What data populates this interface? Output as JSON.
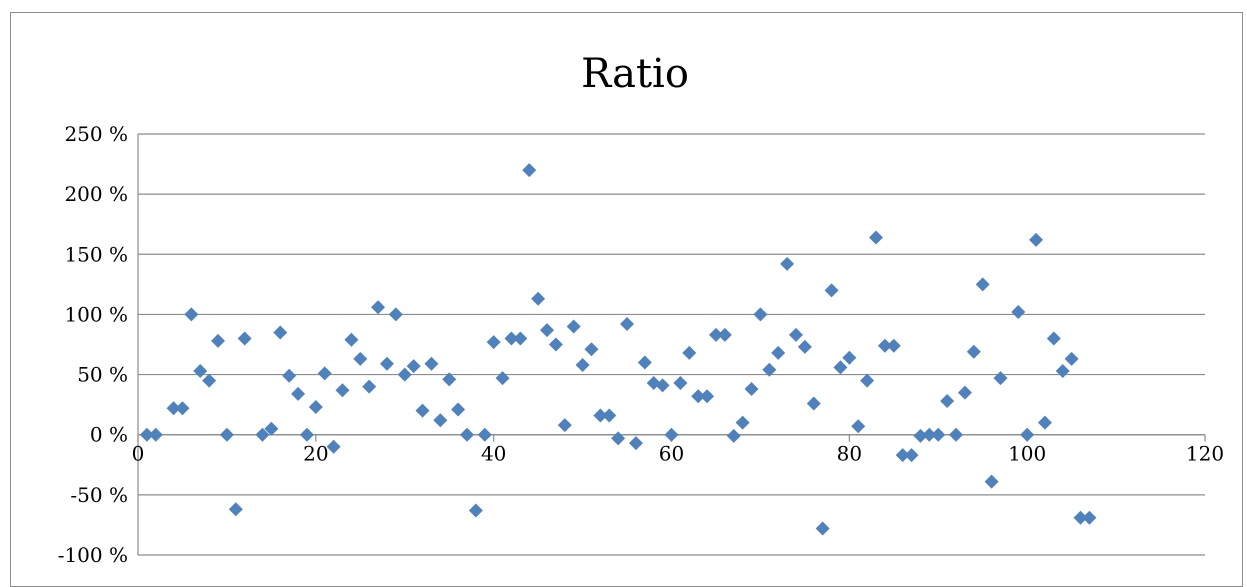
{
  "chart_data": {
    "type": "scatter",
    "title": "Ratio",
    "xlabel": "",
    "ylabel": "",
    "xlim": [
      0,
      120
    ],
    "ylim": [
      -100,
      250
    ],
    "x_ticks": [
      0,
      20,
      40,
      60,
      80,
      100,
      120
    ],
    "y_ticks": [
      -100,
      -50,
      0,
      50,
      100,
      150,
      200,
      250
    ],
    "x_tick_labels": [
      "0",
      "20",
      "40",
      "60",
      "80",
      "100",
      "120"
    ],
    "y_tick_labels": [
      "-100 %",
      "-50 %",
      "0 %",
      "50 %",
      "100 %",
      "150 %",
      "200 %",
      "250 %"
    ],
    "grid": "horizontal",
    "legend": "none",
    "marker": "diamond",
    "colors": {
      "marker": "#4f81bd",
      "grid": "#8c8c8c",
      "axis": "#8c8c8c"
    },
    "series": [
      {
        "x": [
          1,
          2,
          4,
          5,
          6,
          7,
          8,
          9,
          10,
          11,
          12,
          14,
          15,
          16,
          17,
          18,
          19,
          20,
          21,
          22,
          23,
          24,
          25,
          26,
          27,
          28,
          29,
          30,
          31,
          32,
          33,
          34,
          35,
          36,
          37,
          38,
          39,
          40,
          41,
          42,
          43,
          44,
          45,
          46,
          47,
          48,
          49,
          50,
          51,
          52,
          53,
          54,
          55,
          56,
          57,
          58,
          59,
          60,
          61,
          62,
          63,
          64,
          65,
          66,
          67,
          68,
          69,
          70,
          71,
          72,
          73,
          74,
          75,
          76,
          77,
          78,
          79,
          80,
          81,
          82,
          83,
          84,
          85,
          86,
          87,
          88,
          89,
          90,
          91,
          92,
          93,
          94,
          95,
          96,
          97,
          99,
          100,
          101,
          102,
          103,
          104,
          105,
          106,
          107
        ],
        "y": [
          0,
          0,
          22,
          22,
          100,
          53,
          45,
          78,
          0,
          -62,
          80,
          0,
          5,
          85,
          49,
          34,
          0,
          23,
          51,
          -10,
          37,
          79,
          63,
          40,
          106,
          59,
          100,
          50,
          57,
          20,
          59,
          12,
          46,
          21,
          0,
          -63,
          0,
          77,
          47,
          80,
          80,
          220,
          113,
          87,
          75,
          8,
          90,
          58,
          71,
          16,
          16,
          -3,
          92,
          -7,
          60,
          43,
          41,
          0,
          43,
          68,
          32,
          32,
          83,
          83,
          -1,
          10,
          38,
          100,
          54,
          68,
          142,
          83,
          73,
          26,
          -78,
          120,
          56,
          64,
          7,
          45,
          164,
          74,
          74,
          -17,
          -17,
          -1,
          0,
          0,
          28,
          0,
          35,
          69,
          125,
          -39,
          47,
          102,
          0,
          162,
          10,
          80,
          53,
          63,
          -69,
          -69
        ]
      }
    ]
  }
}
